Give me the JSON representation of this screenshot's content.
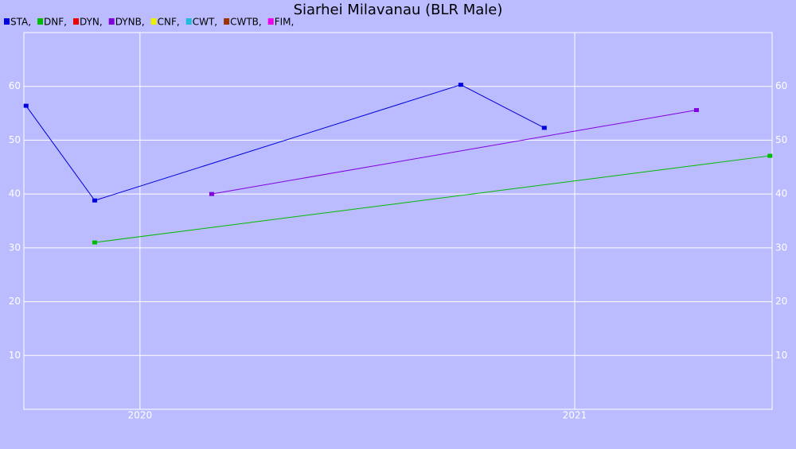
{
  "chart_data": {
    "type": "line",
    "title": "Siarhei Milavanau (BLR Male)",
    "xlim": [
      2019.733,
      2021.454
    ],
    "xticks": [
      2020,
      2021
    ],
    "ylim": [
      0,
      70
    ],
    "yticks": [
      10,
      20,
      30,
      40,
      50,
      60
    ],
    "grid": true,
    "series": [
      {
        "name": "STA,",
        "color": "#0000dd",
        "x": [
          2019.738,
          2019.896,
          2020.738,
          2020.93
        ],
        "values": [
          56.4,
          38.8,
          60.3,
          52.3
        ]
      },
      {
        "name": "DNF,",
        "color": "#00bb00",
        "x": [
          2019.896,
          2021.449
        ],
        "values": [
          31.0,
          47.1
        ]
      },
      {
        "name": "DYN,",
        "color": "#ee0000",
        "x": [],
        "values": []
      },
      {
        "name": "DYNB,",
        "color": "#8000e0",
        "x": [
          2020.165,
          2021.28
        ],
        "values": [
          40.0,
          55.6
        ]
      },
      {
        "name": "CNF,",
        "color": "#eeee00",
        "x": [],
        "values": []
      },
      {
        "name": "CWT,",
        "color": "#22bbdd",
        "x": [],
        "values": []
      },
      {
        "name": "CWTB,",
        "color": "#993300",
        "x": [],
        "values": []
      },
      {
        "name": "FIM,",
        "color": "#ee00ee",
        "x": [],
        "values": []
      }
    ]
  }
}
